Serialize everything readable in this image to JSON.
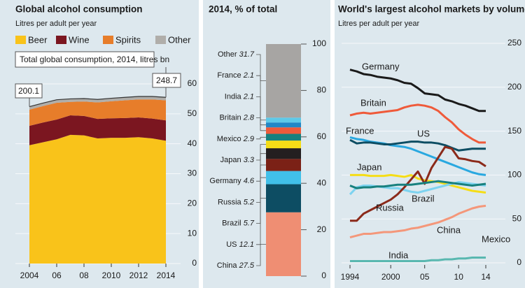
{
  "chart_data": [
    {
      "type": "area",
      "title": "Global alcohol consumption",
      "subtitle": "Litres per adult per year",
      "x": [
        2004,
        2005,
        2006,
        2007,
        2008,
        2009,
        2010,
        2011,
        2012,
        2013,
        2014
      ],
      "xlim": [
        2004,
        2014
      ],
      "xticks": [
        2004,
        {
          "value": 2006,
          "label": "06"
        },
        {
          "value": 2008,
          "label": "08"
        },
        2010,
        2012,
        2014
      ],
      "ylim": [
        0,
        60
      ],
      "yticks": [
        0,
        10,
        20,
        30,
        40,
        50,
        60
      ],
      "grid": true,
      "series": [
        {
          "name": "Beer",
          "color": "#f9c31a",
          "values": [
            39.5,
            40.5,
            41.5,
            43,
            42.8,
            41.8,
            42,
            42,
            42.2,
            41.8,
            41
          ]
        },
        {
          "name": "Wine",
          "color": "#7b1620",
          "values": [
            6.5,
            6.6,
            6.6,
            6.5,
            6.5,
            6.5,
            6.5,
            6.6,
            6.6,
            6.6,
            6.8
          ]
        },
        {
          "name": "Spirits",
          "color": "#e77d2a",
          "values": [
            5.4,
            5.5,
            5.6,
            4.5,
            4.8,
            5.5,
            5.7,
            5.9,
            6,
            6.4,
            6.7
          ]
        },
        {
          "name": "Other",
          "color": "#b0aeaa",
          "values": [
            1,
            1,
            1,
            1,
            1,
            1,
            1,
            1,
            1,
            1,
            1
          ]
        }
      ],
      "annotation": {
        "text": "Total global consumption, 2014, litres bn",
        "start_value": 200.1,
        "end_value": 248.7
      }
    },
    {
      "type": "stacked-bar",
      "title": "2014, % of total",
      "categories": [
        "China",
        "US",
        "Brazil",
        "Russia",
        "Germany",
        "Japan",
        "Mexico",
        "Britain",
        "India",
        "France",
        "Other"
      ],
      "values": [
        27.5,
        12.1,
        5.7,
        5.2,
        4.6,
        3.3,
        2.9,
        2.8,
        2.1,
        2.1,
        31.7
      ],
      "colors": [
        "#ef8e73",
        "#0d4d63",
        "#41c0e9",
        "#7b2116",
        "#231f20",
        "#f5dd17",
        "#17807e",
        "#ef5a3a",
        "#2287c6",
        "#5ec9e8",
        "#a7a5a3"
      ],
      "ylim": [
        0,
        100
      ],
      "yticks": [
        0,
        20,
        40,
        60,
        80,
        100
      ]
    },
    {
      "type": "line",
      "title": "World's largest alcohol markets by volume",
      "subtitle": "Litres per adult per year",
      "x": [
        1994,
        1995,
        1996,
        1997,
        1998,
        1999,
        2000,
        2001,
        2002,
        2003,
        2004,
        2005,
        2006,
        2007,
        2008,
        2009,
        2010,
        2011,
        2012,
        2013,
        2014
      ],
      "xlim": [
        1994,
        2014
      ],
      "xticks": [
        1994,
        2000,
        {
          "value": 2005,
          "label": "05"
        },
        {
          "value": 2010,
          "label": "10"
        },
        {
          "value": 2014,
          "label": "14"
        }
      ],
      "ylim": [
        0,
        250
      ],
      "yticks": [
        0,
        50,
        100,
        150,
        200,
        250
      ],
      "grid": true,
      "series": [
        {
          "name": "Germany",
          "color": "#1a1a1a",
          "values": [
            220,
            218,
            215,
            214,
            212,
            211,
            210,
            208,
            205,
            204,
            199,
            193,
            192,
            191,
            186,
            184,
            181,
            179,
            176,
            173,
            173
          ]
        },
        {
          "name": "Britain",
          "color": "#ef5a3a",
          "values": [
            168,
            170,
            171,
            170,
            171,
            172,
            173,
            174,
            177,
            179,
            180,
            179,
            177,
            173,
            166,
            160,
            152,
            146,
            141,
            137,
            137
          ]
        },
        {
          "name": "France",
          "color": "#29a8e0",
          "values": [
            143,
            141,
            140,
            138,
            137,
            136,
            134,
            133,
            132,
            130,
            127,
            124,
            121,
            118,
            115,
            112,
            109,
            106,
            103,
            101,
            100
          ]
        },
        {
          "name": "US",
          "color": "#0d4d63",
          "values": [
            140,
            136,
            137,
            137,
            136,
            135,
            135,
            136,
            137,
            138,
            138,
            137,
            137,
            136,
            134,
            131,
            128,
            129,
            130,
            130,
            130
          ]
        },
        {
          "name": "Japan",
          "color": "#f5dd17",
          "values": [
            100,
            100,
            100,
            99,
            99,
            99,
            100,
            99,
            98,
            100,
            96,
            94,
            93,
            92,
            90,
            88,
            86,
            84,
            82,
            81,
            80
          ]
        },
        {
          "name": "Brazil",
          "color": "#7dd3f0",
          "values": [
            78,
            86,
            88,
            88,
            87,
            86,
            85,
            85,
            83,
            81,
            80,
            82,
            84,
            86,
            88,
            90,
            92,
            91,
            90,
            89,
            88
          ]
        },
        {
          "name": "Russia",
          "color": "#8b2a1a",
          "values": [
            48,
            48,
            56,
            60,
            64,
            68,
            72,
            78,
            86,
            95,
            104,
            90,
            108,
            120,
            132,
            130,
            119,
            118,
            116,
            115,
            110
          ]
        },
        {
          "name": "China",
          "color": "#f4977a",
          "values": [
            29,
            31,
            33,
            33,
            34,
            35,
            35,
            36,
            37,
            39,
            40,
            42,
            44,
            46,
            49,
            52,
            56,
            59,
            62,
            64,
            65
          ]
        },
        {
          "name": "Mexico",
          "color": "#17807e",
          "values": [
            88,
            85,
            86,
            86,
            87,
            87,
            88,
            89,
            89,
            89,
            90,
            91,
            92,
            93,
            92,
            91,
            90,
            89,
            88,
            89,
            90
          ]
        },
        {
          "name": "India",
          "color": "#59b8b0",
          "values": [
            2,
            2,
            2,
            2,
            2,
            2,
            2,
            2,
            2,
            2,
            2,
            2,
            3,
            3,
            4,
            4,
            5,
            5,
            6,
            6,
            6
          ]
        }
      ]
    }
  ]
}
